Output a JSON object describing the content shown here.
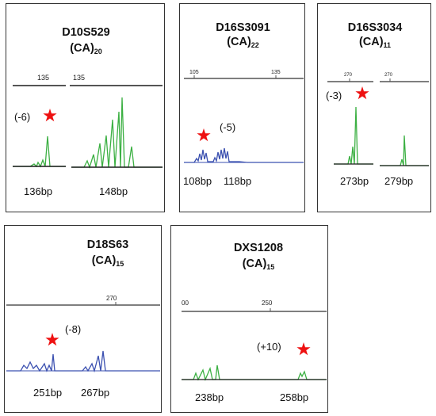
{
  "panels": [
    {
      "marker": "D10S529",
      "repeat": "(CA)",
      "repeat_n": "20",
      "shift": "(-6)",
      "ticks": [
        "135",
        "135"
      ],
      "sizes": [
        "136bp",
        "148bp"
      ],
      "trace_color": "#3cb043"
    },
    {
      "marker": "D16S3091",
      "repeat": "(CA)",
      "repeat_n": "22",
      "shift": "(-5)",
      "ticks": [
        "105",
        "135"
      ],
      "sizes": [
        "108bp",
        "118bp"
      ],
      "trace_color": "#3b50b0"
    },
    {
      "marker": "D16S3034",
      "repeat": "(CA)",
      "repeat_n": "11",
      "shift": "(-3)",
      "ticks": [
        "270",
        "270"
      ],
      "sizes": [
        "273bp",
        "279bp"
      ],
      "trace_color": "#3cb043"
    },
    {
      "marker": "D18S63",
      "repeat": "(CA)",
      "repeat_n": "15",
      "shift": "(-8)",
      "ticks": [
        "270"
      ],
      "sizes": [
        "251bp",
        "267bp"
      ],
      "trace_color": "#3b50b0"
    },
    {
      "marker": "DXS1208",
      "repeat": "(CA)",
      "repeat_n": "15",
      "shift": "(+10)",
      "ticks": [
        "00",
        "250"
      ],
      "sizes": [
        "238bp",
        "258bp"
      ],
      "trace_color": "#3cb043"
    }
  ],
  "star_color": "#ee1111",
  "star_icon": "star-icon"
}
